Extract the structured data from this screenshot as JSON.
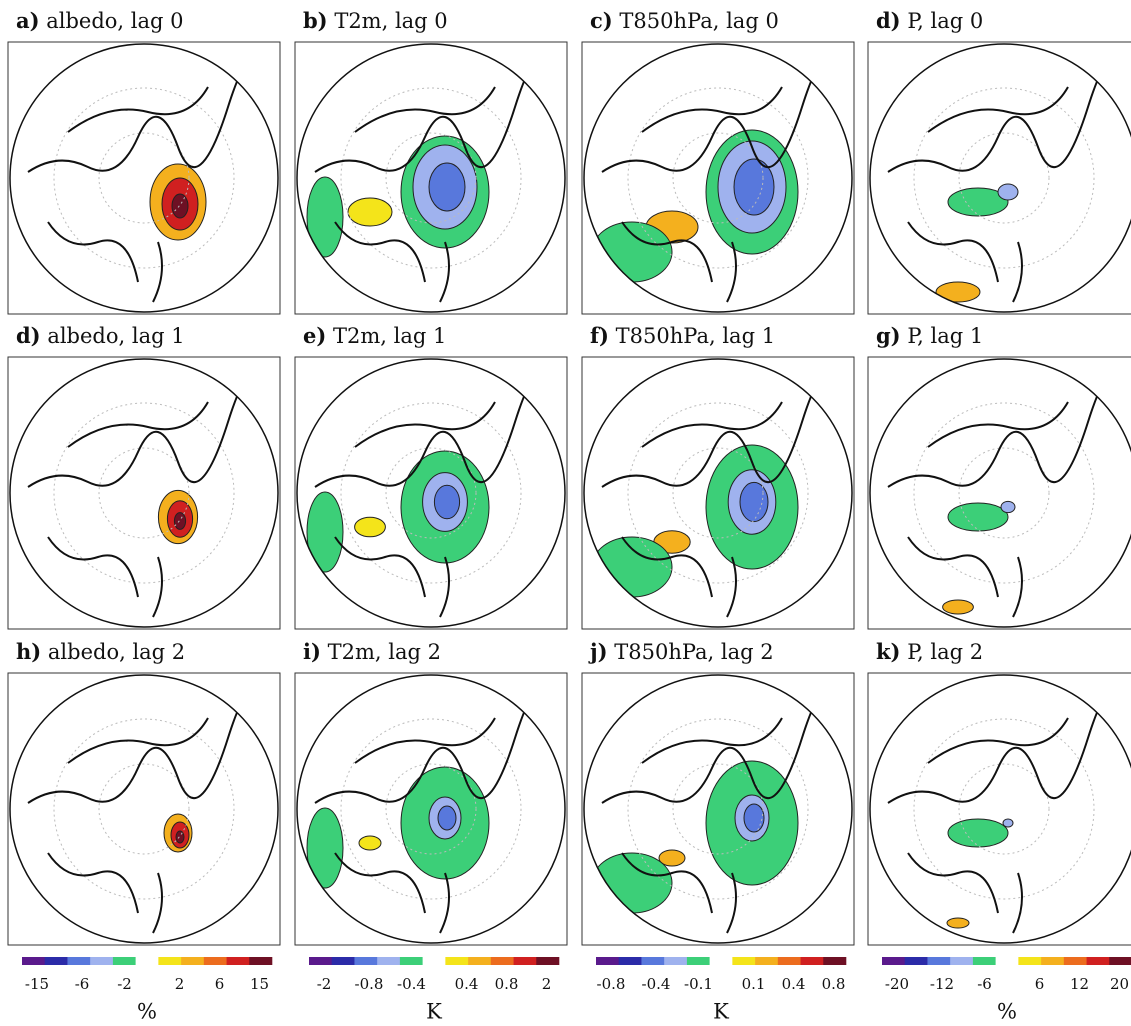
{
  "panels": [
    {
      "letter": "a)",
      "title": "albedo, lag 0"
    },
    {
      "letter": "b)",
      "title": "T2m, lag 0"
    },
    {
      "letter": "c)",
      "title": "T850hPa, lag 0"
    },
    {
      "letter": "d)",
      "title": "P, lag 0"
    },
    {
      "letter": "d)",
      "title": "albedo, lag 1"
    },
    {
      "letter": "e)",
      "title": "T2m, lag 1"
    },
    {
      "letter": "f)",
      "title": "T850hPa, lag 1"
    },
    {
      "letter": "g)",
      "title": "P, lag 1"
    },
    {
      "letter": "h)",
      "title": "albedo, lag 2"
    },
    {
      "letter": "i)",
      "title": "T2m, lag 2"
    },
    {
      "letter": "j)",
      "title": "T850hPa, lag 2"
    },
    {
      "letter": "k)",
      "title": "P, lag 2"
    }
  ],
  "colorbar_colors": [
    "#5a1a8c",
    "#2b2ba8",
    "#5878dc",
    "#9fb2ee",
    "#3ccf78",
    "#ffffff",
    "#f4e41a",
    "#f4b01e",
    "#ec6c1e",
    "#d02020",
    "#6e1024"
  ],
  "colorbars": [
    {
      "ticks": [
        -15,
        -6,
        -2,
        2,
        6,
        15
      ],
      "unit": "%"
    },
    {
      "ticks": [
        -2,
        -0.8,
        -0.4,
        0.4,
        0.8,
        2
      ],
      "unit": "K"
    },
    {
      "ticks": [
        -0.8,
        -0.4,
        -0.1,
        0.1,
        0.4,
        0.8
      ],
      "unit": "K"
    },
    {
      "ticks": [
        -20,
        -12,
        -6,
        6,
        12,
        20
      ],
      "unit": "%"
    }
  ]
}
